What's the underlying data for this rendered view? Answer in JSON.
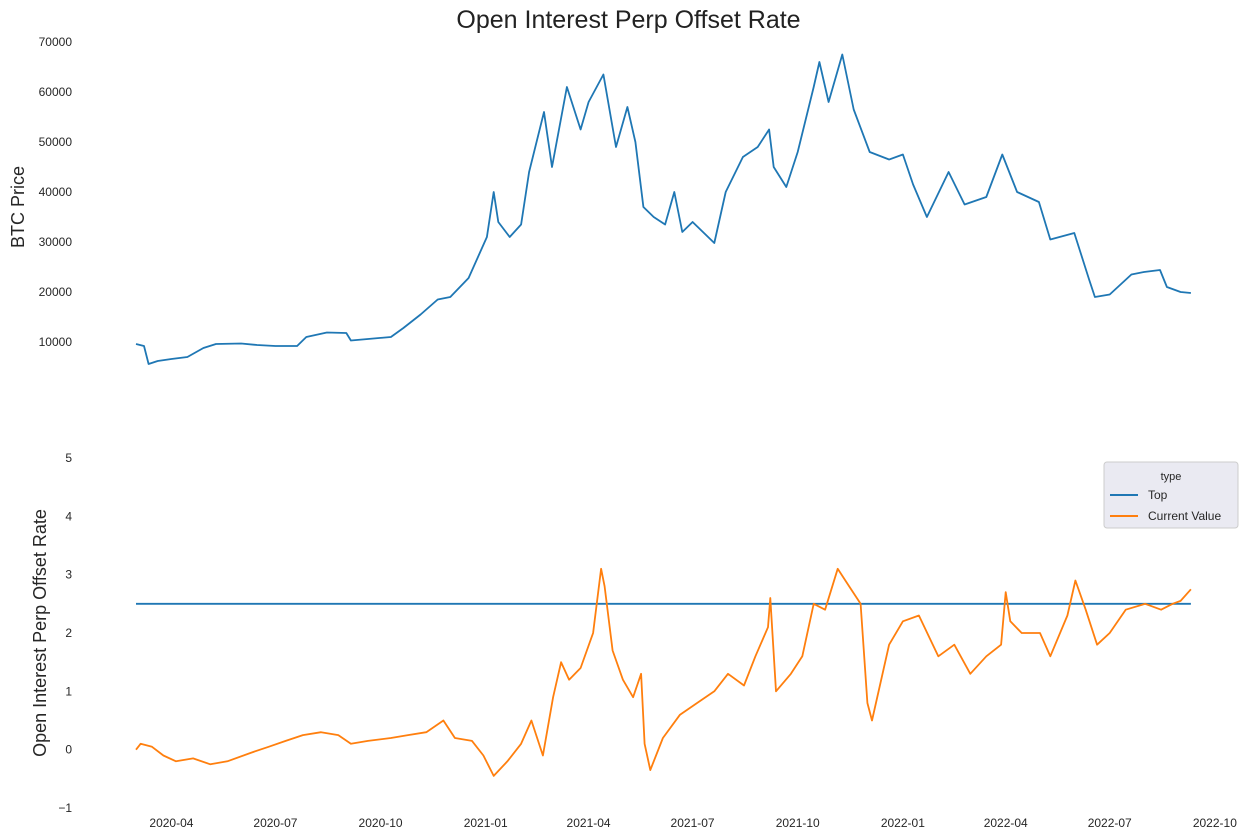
{
  "chart_data": {
    "title": "Open Interest Perp Offset Rate",
    "type": "line",
    "panels": [
      {
        "ylabel": "BTC  Price",
        "ylim": [
          4000,
          70000
        ],
        "yticks": [
          10000,
          20000,
          30000,
          40000,
          50000,
          60000,
          70000
        ],
        "grid": false,
        "legend": null,
        "series": [
          {
            "color": "#1f77b4",
            "points": [
              [
                "2020-03-01",
                9600
              ],
              [
                "2020-03-08",
                9200
              ],
              [
                "2020-03-12",
                5600
              ],
              [
                "2020-03-20",
                6200
              ],
              [
                "2020-04-01",
                6600
              ],
              [
                "2020-04-15",
                7000
              ],
              [
                "2020-04-29",
                8800
              ],
              [
                "2020-05-10",
                9600
              ],
              [
                "2020-06-01",
                9700
              ],
              [
                "2020-06-15",
                9400
              ],
              [
                "2020-07-01",
                9200
              ],
              [
                "2020-07-20",
                9200
              ],
              [
                "2020-07-28",
                11000
              ],
              [
                "2020-08-15",
                11900
              ],
              [
                "2020-09-01",
                11800
              ],
              [
                "2020-09-05",
                10300
              ],
              [
                "2020-09-20",
                10600
              ],
              [
                "2020-10-10",
                11000
              ],
              [
                "2020-10-21",
                12800
              ],
              [
                "2020-11-05",
                15500
              ],
              [
                "2020-11-20",
                18500
              ],
              [
                "2020-12-01",
                19000
              ],
              [
                "2020-12-17",
                22800
              ],
              [
                "2021-01-02",
                31000
              ],
              [
                "2021-01-08",
                40000
              ],
              [
                "2021-01-12",
                34000
              ],
              [
                "2021-01-22",
                31000
              ],
              [
                "2021-02-01",
                33500
              ],
              [
                "2021-02-08",
                44000
              ],
              [
                "2021-02-21",
                56000
              ],
              [
                "2021-02-28",
                45000
              ],
              [
                "2021-03-13",
                61000
              ],
              [
                "2021-03-25",
                52500
              ],
              [
                "2021-04-01",
                58000
              ],
              [
                "2021-04-14",
                63500
              ],
              [
                "2021-04-25",
                49000
              ],
              [
                "2021-05-05",
                57000
              ],
              [
                "2021-05-12",
                50000
              ],
              [
                "2021-05-19",
                37000
              ],
              [
                "2021-05-28",
                35000
              ],
              [
                "2021-06-07",
                33500
              ],
              [
                "2021-06-15",
                40000
              ],
              [
                "2021-06-22",
                32000
              ],
              [
                "2021-07-01",
                34000
              ],
              [
                "2021-07-20",
                29800
              ],
              [
                "2021-07-30",
                40000
              ],
              [
                "2021-08-14",
                47000
              ],
              [
                "2021-08-27",
                49000
              ],
              [
                "2021-09-06",
                52500
              ],
              [
                "2021-09-10",
                45000
              ],
              [
                "2021-09-21",
                41000
              ],
              [
                "2021-10-01",
                48000
              ],
              [
                "2021-10-15",
                61000
              ],
              [
                "2021-10-20",
                66000
              ],
              [
                "2021-10-28",
                58000
              ],
              [
                "2021-11-09",
                67500
              ],
              [
                "2021-11-19",
                56500
              ],
              [
                "2021-12-03",
                48000
              ],
              [
                "2021-12-20",
                46500
              ],
              [
                "2022-01-01",
                47500
              ],
              [
                "2022-01-10",
                41500
              ],
              [
                "2022-01-22",
                35000
              ],
              [
                "2022-02-10",
                44000
              ],
              [
                "2022-02-24",
                37500
              ],
              [
                "2022-03-15",
                39000
              ],
              [
                "2022-03-29",
                47500
              ],
              [
                "2022-04-11",
                40000
              ],
              [
                "2022-04-30",
                38000
              ],
              [
                "2022-05-10",
                30500
              ],
              [
                "2022-05-31",
                31800
              ],
              [
                "2022-06-13",
                22500
              ],
              [
                "2022-06-18",
                19000
              ],
              [
                "2022-07-01",
                19500
              ],
              [
                "2022-07-20",
                23500
              ],
              [
                "2022-07-31",
                24000
              ],
              [
                "2022-08-14",
                24400
              ],
              [
                "2022-08-20",
                21000
              ],
              [
                "2022-09-01",
                20000
              ],
              [
                "2022-09-10",
                19800
              ]
            ]
          }
        ]
      },
      {
        "ylabel": "Open Interest Perp Offset Rate",
        "ylim": [
          -1,
          5
        ],
        "yticks": [
          -1,
          0,
          1,
          2,
          3,
          4,
          5
        ],
        "grid": false,
        "legend": {
          "title": "type",
          "position": "upper-right",
          "entries": [
            {
              "label": "Top",
              "color": "#1f77b4"
            },
            {
              "label": "Current Value",
              "color": "#ff7f0e"
            }
          ]
        },
        "series": [
          {
            "name": "Top",
            "color": "#1f77b4",
            "points": [
              [
                "2020-03-01",
                2.5
              ],
              [
                "2022-09-10",
                2.5
              ]
            ]
          },
          {
            "name": "Current Value",
            "color": "#ff7f0e",
            "points": [
              [
                "2020-03-01",
                0.0
              ],
              [
                "2020-03-05",
                0.1
              ],
              [
                "2020-03-15",
                0.05
              ],
              [
                "2020-03-25",
                -0.1
              ],
              [
                "2020-04-05",
                -0.2
              ],
              [
                "2020-04-20",
                -0.15
              ],
              [
                "2020-05-05",
                -0.25
              ],
              [
                "2020-05-20",
                -0.2
              ],
              [
                "2020-06-10",
                -0.05
              ],
              [
                "2020-06-25",
                0.05
              ],
              [
                "2020-07-10",
                0.15
              ],
              [
                "2020-07-25",
                0.25
              ],
              [
                "2020-08-10",
                0.3
              ],
              [
                "2020-08-25",
                0.25
              ],
              [
                "2020-09-05",
                0.1
              ],
              [
                "2020-09-20",
                0.15
              ],
              [
                "2020-10-10",
                0.2
              ],
              [
                "2020-10-25",
                0.25
              ],
              [
                "2020-11-10",
                0.3
              ],
              [
                "2020-11-25",
                0.5
              ],
              [
                "2020-12-05",
                0.2
              ],
              [
                "2020-12-20",
                0.15
              ],
              [
                "2020-12-30",
                -0.1
              ],
              [
                "2021-01-08",
                -0.45
              ],
              [
                "2021-01-20",
                -0.2
              ],
              [
                "2021-02-01",
                0.1
              ],
              [
                "2021-02-10",
                0.5
              ],
              [
                "2021-02-20",
                -0.1
              ],
              [
                "2021-03-01",
                0.9
              ],
              [
                "2021-03-08",
                1.5
              ],
              [
                "2021-03-15",
                1.2
              ],
              [
                "2021-03-25",
                1.4
              ],
              [
                "2021-04-05",
                2.0
              ],
              [
                "2021-04-12",
                3.1
              ],
              [
                "2021-04-15",
                2.8
              ],
              [
                "2021-04-22",
                1.7
              ],
              [
                "2021-05-01",
                1.2
              ],
              [
                "2021-05-10",
                0.9
              ],
              [
                "2021-05-17",
                1.3
              ],
              [
                "2021-05-20",
                0.1
              ],
              [
                "2021-05-25",
                -0.35
              ],
              [
                "2021-06-05",
                0.2
              ],
              [
                "2021-06-20",
                0.6
              ],
              [
                "2021-07-05",
                0.8
              ],
              [
                "2021-07-20",
                1.0
              ],
              [
                "2021-08-01",
                1.3
              ],
              [
                "2021-08-15",
                1.1
              ],
              [
                "2021-08-25",
                1.6
              ],
              [
                "2021-09-05",
                2.1
              ],
              [
                "2021-09-07",
                2.6
              ],
              [
                "2021-09-12",
                1.0
              ],
              [
                "2021-09-25",
                1.3
              ],
              [
                "2021-10-05",
                1.6
              ],
              [
                "2021-10-15",
                2.5
              ],
              [
                "2021-10-25",
                2.4
              ],
              [
                "2021-11-05",
                3.1
              ],
              [
                "2021-11-15",
                2.8
              ],
              [
                "2021-11-25",
                2.5
              ],
              [
                "2021-12-01",
                0.8
              ],
              [
                "2021-12-05",
                0.5
              ],
              [
                "2021-12-20",
                1.8
              ],
              [
                "2022-01-01",
                2.2
              ],
              [
                "2022-01-15",
                2.3
              ],
              [
                "2022-02-01",
                1.6
              ],
              [
                "2022-02-15",
                1.8
              ],
              [
                "2022-03-01",
                1.3
              ],
              [
                "2022-03-15",
                1.6
              ],
              [
                "2022-03-28",
                1.8
              ],
              [
                "2022-04-01",
                2.7
              ],
              [
                "2022-04-05",
                2.2
              ],
              [
                "2022-04-15",
                2.0
              ],
              [
                "2022-05-01",
                2.0
              ],
              [
                "2022-05-10",
                1.6
              ],
              [
                "2022-05-25",
                2.3
              ],
              [
                "2022-06-01",
                2.9
              ],
              [
                "2022-06-10",
                2.4
              ],
              [
                "2022-06-20",
                1.8
              ],
              [
                "2022-07-01",
                2.0
              ],
              [
                "2022-07-15",
                2.4
              ],
              [
                "2022-08-01",
                2.5
              ],
              [
                "2022-08-15",
                2.4
              ],
              [
                "2022-08-25",
                2.5
              ],
              [
                "2022-09-01",
                2.55
              ],
              [
                "2022-09-10",
                2.75
              ]
            ]
          }
        ]
      }
    ],
    "x_axis": {
      "type": "date",
      "range": [
        "2020-02-01",
        "2022-10-01"
      ],
      "tick_labels": [
        "2020-04",
        "2020-07",
        "2020-10",
        "2021-01",
        "2021-04",
        "2021-07",
        "2021-10",
        "2022-01",
        "2022-04",
        "2022-07",
        "2022-10"
      ]
    }
  }
}
